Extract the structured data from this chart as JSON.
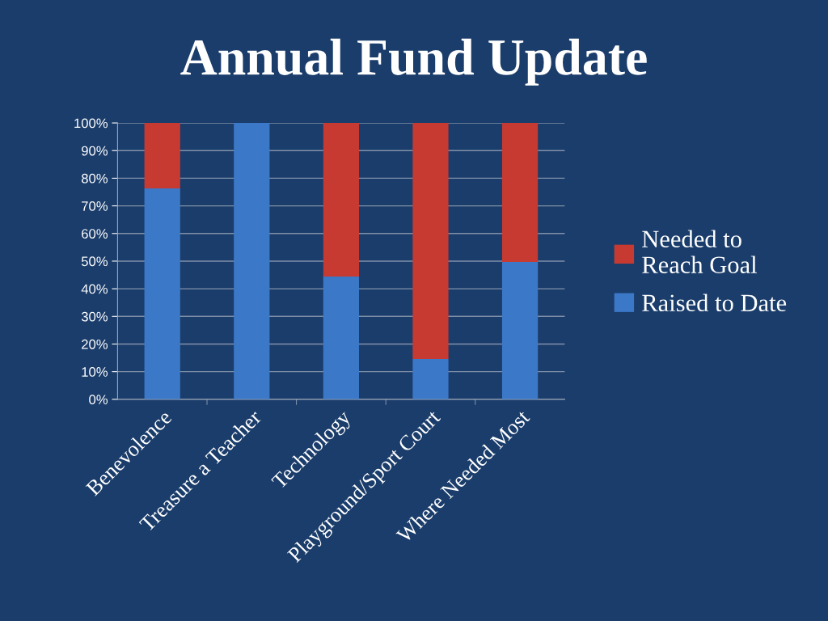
{
  "chart_data": {
    "type": "bar",
    "title": "Annual Fund Update",
    "categories": [
      "Benevolence",
      "Treasure a Teacher",
      "Technology",
      "Playground/Sport Court",
      "Where Needed Most"
    ],
    "stacked": true,
    "series": [
      {
        "name": "Raised to Date",
        "color": "#3b78c8",
        "values": [
          76.3,
          100,
          44.4,
          14.6,
          49.7
        ]
      },
      {
        "name": "Needed to\nReach Goal",
        "color": "#c63a32",
        "values": [
          23.7,
          0,
          55.6,
          85.4,
          50.3
        ]
      }
    ],
    "ylim": [
      0,
      100
    ],
    "yticks": [
      {
        "value": 0,
        "label": "0%"
      },
      {
        "value": 10,
        "label": "10%"
      },
      {
        "value": 20,
        "label": "20%"
      },
      {
        "value": 30,
        "label": "30%"
      },
      {
        "value": 40,
        "label": "40%"
      },
      {
        "value": 50,
        "label": "50%"
      },
      {
        "value": 60,
        "label": "60%"
      },
      {
        "value": 70,
        "label": "70%"
      },
      {
        "value": 80,
        "label": "80%"
      },
      {
        "value": 90,
        "label": "90%"
      },
      {
        "value": 100,
        "label": "100%"
      }
    ],
    "grid": "y",
    "legend": "right"
  }
}
